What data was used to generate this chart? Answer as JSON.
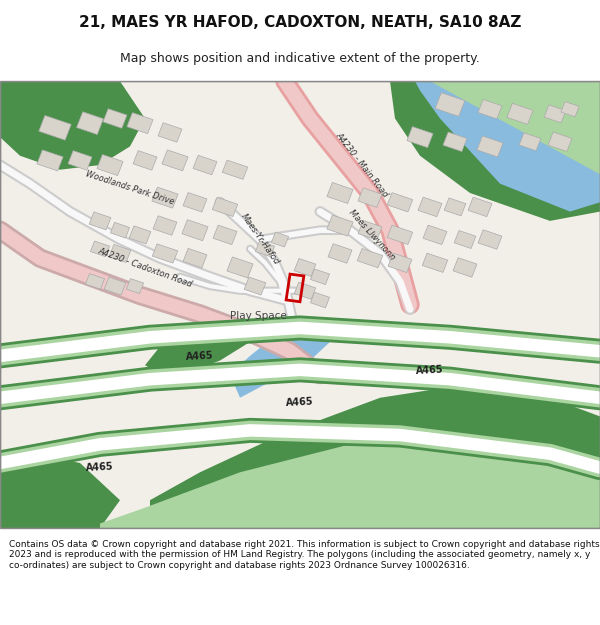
{
  "title_line1": "21, MAES YR HAFOD, CADOXTON, NEATH, SA10 8AZ",
  "title_line2": "Map shows position and indicative extent of the property.",
  "footer_text": "Contains OS data © Crown copyright and database right 2021. This information is subject to Crown copyright and database rights 2023 and is reproduced with the permission of HM Land Registry. The polygons (including the associated geometry, namely x, y co-ordinates) are subject to Crown copyright and database rights 2023 Ordnance Survey 100026316.",
  "bg_color": "#ffffff",
  "map_bg": "#f2efe9",
  "road_pink_color": "#f0c8c8",
  "road_green_color": "#c8e6c0",
  "road_green_dark": "#5a9a5a",
  "green_area_color": "#4a8f4a",
  "green_light_color": "#aad4a0",
  "blue_color": "#88bbdd",
  "building_color": "#d8d4cc",
  "building_stroke": "#aaaaaa",
  "road_white": "#ffffff",
  "road_outline": "#cccccc",
  "plot_color": "#cc0000",
  "text_color": "#333333",
  "road_label_color": "#333333"
}
